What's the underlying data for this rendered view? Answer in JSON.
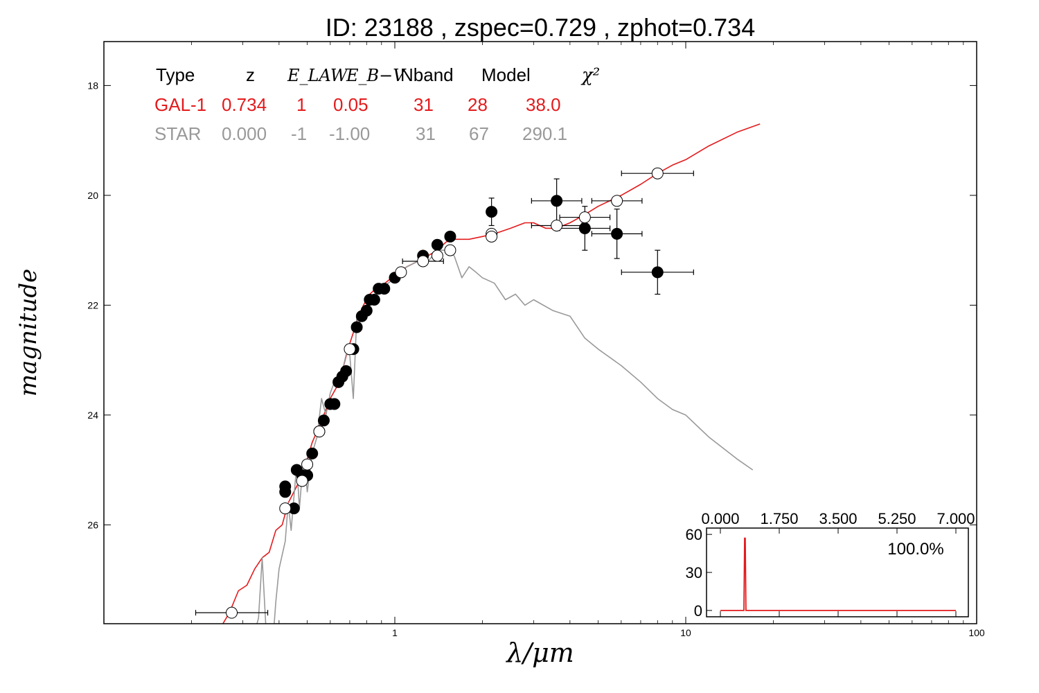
{
  "chart_data": [
    {
      "type": "scatter",
      "title": "ID:  23188 , zspec=0.729 , zphot=0.734",
      "xlabel": "λ/μm",
      "ylabel": "magnitude",
      "xscale": "log",
      "xlim": [
        0.1,
        100
      ],
      "ylim": [
        27.8,
        17.2
      ],
      "xticks": [
        "1",
        "10",
        "100"
      ],
      "yticks": [
        "18",
        "20",
        "22",
        "24",
        "26"
      ],
      "grid": false,
      "fit_table": {
        "headers": [
          "Type",
          "z",
          "E_LAW",
          "E_B−V",
          "Nband",
          "Model",
          "χ²"
        ],
        "rows": [
          {
            "type": "GAL-1",
            "z": "0.734",
            "elaw": "1",
            "ebv": "0.05",
            "nband": "31",
            "model": "28",
            "chi2": "38.0",
            "color": "#e31a1c"
          },
          {
            "type": "STAR",
            "z": "0.000",
            "elaw": "-1",
            "ebv": "-1.00",
            "nband": "31",
            "model": "67",
            "chi2": "290.1",
            "color": "#999999"
          }
        ]
      },
      "series": [
        {
          "name": "GAL-1",
          "kind": "line",
          "color": "#e31a1c",
          "points": [
            [
              0.25,
              27.9
            ],
            [
              0.27,
              27.6
            ],
            [
              0.29,
              27.2
            ],
            [
              0.31,
              27.1
            ],
            [
              0.33,
              26.8
            ],
            [
              0.35,
              26.6
            ],
            [
              0.37,
              26.5
            ],
            [
              0.39,
              26.1
            ],
            [
              0.41,
              26.0
            ],
            [
              0.43,
              25.6
            ],
            [
              0.45,
              25.4
            ],
            [
              0.47,
              25.2
            ],
            [
              0.5,
              24.8
            ],
            [
              0.52,
              24.5
            ],
            [
              0.55,
              24.2
            ],
            [
              0.58,
              23.9
            ],
            [
              0.6,
              23.7
            ],
            [
              0.63,
              23.5
            ],
            [
              0.66,
              23.2
            ],
            [
              0.69,
              22.8
            ],
            [
              0.72,
              22.5
            ],
            [
              0.75,
              22.2
            ],
            [
              0.78,
              22.0
            ],
            [
              0.82,
              21.8
            ],
            [
              0.86,
              21.7
            ],
            [
              0.9,
              21.65
            ],
            [
              0.95,
              21.55
            ],
            [
              1.0,
              21.45
            ],
            [
              1.1,
              21.3
            ],
            [
              1.2,
              21.2
            ],
            [
              1.25,
              21.0
            ],
            [
              1.3,
              21.1
            ],
            [
              1.4,
              21.0
            ],
            [
              1.5,
              20.85
            ],
            [
              1.6,
              20.8
            ],
            [
              1.8,
              20.8
            ],
            [
              2.0,
              20.75
            ],
            [
              2.2,
              20.7
            ],
            [
              2.5,
              20.6
            ],
            [
              2.8,
              20.5
            ],
            [
              3.0,
              20.5
            ],
            [
              3.3,
              20.6
            ],
            [
              3.6,
              20.6
            ],
            [
              4.0,
              20.5
            ],
            [
              4.5,
              20.35
            ],
            [
              5.0,
              20.2
            ],
            [
              6.0,
              20.0
            ],
            [
              7.0,
              19.8
            ],
            [
              8.0,
              19.6
            ],
            [
              9.0,
              19.45
            ],
            [
              10.0,
              19.35
            ],
            [
              12.0,
              19.1
            ],
            [
              15.0,
              18.85
            ],
            [
              18.0,
              18.7
            ]
          ]
        },
        {
          "name": "STAR",
          "kind": "line",
          "color": "#999999",
          "points": [
            [
              0.32,
              28.2
            ],
            [
              0.34,
              27.7
            ],
            [
              0.35,
              26.6
            ],
            [
              0.36,
              27.8
            ],
            [
              0.38,
              28.2
            ],
            [
              0.39,
              27.4
            ],
            [
              0.4,
              26.8
            ],
            [
              0.42,
              26.3
            ],
            [
              0.43,
              25.6
            ],
            [
              0.44,
              26.1
            ],
            [
              0.45,
              25.5
            ],
            [
              0.46,
              24.9
            ],
            [
              0.47,
              25.7
            ],
            [
              0.48,
              25.1
            ],
            [
              0.49,
              24.9
            ],
            [
              0.5,
              25.4
            ],
            [
              0.52,
              24.7
            ],
            [
              0.54,
              24.4
            ],
            [
              0.56,
              23.7
            ],
            [
              0.58,
              24.0
            ],
            [
              0.6,
              23.6
            ],
            [
              0.62,
              23.4
            ],
            [
              0.64,
              23.4
            ],
            [
              0.66,
              23.2
            ],
            [
              0.68,
              22.9
            ],
            [
              0.7,
              22.9
            ],
            [
              0.72,
              23.7
            ],
            [
              0.74,
              22.2
            ],
            [
              0.76,
              22.3
            ],
            [
              0.8,
              22.0
            ],
            [
              0.85,
              21.8
            ],
            [
              0.9,
              21.7
            ],
            [
              1.0,
              21.5
            ],
            [
              1.1,
              21.3
            ],
            [
              1.2,
              21.2
            ],
            [
              1.3,
              21.2
            ],
            [
              1.4,
              21.0
            ],
            [
              1.5,
              21.0
            ],
            [
              1.6,
              21.1
            ],
            [
              1.7,
              21.5
            ],
            [
              1.8,
              21.3
            ],
            [
              1.9,
              21.4
            ],
            [
              2.0,
              21.5
            ],
            [
              2.2,
              21.6
            ],
            [
              2.4,
              21.9
            ],
            [
              2.6,
              21.8
            ],
            [
              2.8,
              22.0
            ],
            [
              3.0,
              21.9
            ],
            [
              3.5,
              22.1
            ],
            [
              4.0,
              22.2
            ],
            [
              4.5,
              22.6
            ],
            [
              5.0,
              22.8
            ],
            [
              6.0,
              23.1
            ],
            [
              7.0,
              23.4
            ],
            [
              8.0,
              23.7
            ],
            [
              9.0,
              23.9
            ],
            [
              10.0,
              24.0
            ],
            [
              12.0,
              24.4
            ],
            [
              15.0,
              24.8
            ],
            [
              17.0,
              25.0
            ]
          ]
        },
        {
          "name": "observed",
          "kind": "points",
          "marker": "filled",
          "points": [
            [
              0.42,
              25.3
            ],
            [
              0.42,
              25.4
            ],
            [
              0.45,
              25.7
            ],
            [
              0.46,
              25.0
            ],
            [
              0.48,
              25.1
            ],
            [
              0.5,
              25.1
            ],
            [
              0.52,
              24.7
            ],
            [
              0.55,
              24.3
            ],
            [
              0.57,
              24.1
            ],
            [
              0.6,
              23.8
            ],
            [
              0.62,
              23.8
            ],
            [
              0.64,
              23.4
            ],
            [
              0.66,
              23.3
            ],
            [
              0.68,
              23.2
            ],
            [
              0.72,
              22.8
            ],
            [
              0.74,
              22.4
            ],
            [
              0.77,
              22.2
            ],
            [
              0.8,
              22.1
            ],
            [
              0.82,
              21.9
            ],
            [
              0.85,
              21.9
            ],
            [
              0.88,
              21.7
            ],
            [
              0.92,
              21.7
            ],
            [
              1.0,
              21.5
            ],
            [
              1.25,
              21.1
            ],
            [
              1.4,
              20.9
            ],
            [
              1.55,
              20.75
            ],
            [
              2.15,
              20.3
            ],
            [
              3.6,
              20.1
            ],
            [
              4.5,
              20.6
            ],
            [
              5.8,
              20.7
            ],
            [
              8.0,
              21.4
            ]
          ],
          "yerr": [
            0,
            0,
            0,
            0,
            0,
            0,
            0,
            0,
            0,
            0,
            0,
            0,
            0,
            0,
            0,
            0,
            0,
            0,
            0,
            0,
            0,
            0,
            0,
            0,
            0,
            0,
            0.25,
            0.4,
            0.4,
            0.45,
            0.4
          ],
          "xerr_frac": [
            0,
            0,
            0,
            0,
            0,
            0,
            0,
            0,
            0,
            0,
            0,
            0,
            0,
            0,
            0,
            0,
            0,
            0,
            0,
            0,
            0,
            0,
            0,
            0,
            0,
            0,
            0,
            0.1,
            0.1,
            0.1,
            0.15
          ]
        },
        {
          "name": "model",
          "kind": "points",
          "marker": "open",
          "points": [
            [
              0.275,
              27.6
            ],
            [
              0.42,
              25.7
            ],
            [
              0.48,
              25.2
            ],
            [
              0.5,
              24.9
            ],
            [
              0.55,
              24.3
            ],
            [
              0.7,
              22.8
            ],
            [
              1.05,
              21.4
            ],
            [
              1.25,
              21.2
            ],
            [
              1.4,
              21.1
            ],
            [
              1.55,
              21.0
            ],
            [
              2.15,
              20.7
            ],
            [
              2.15,
              20.75
            ],
            [
              3.6,
              20.55
            ],
            [
              4.5,
              20.4
            ],
            [
              5.8,
              20.1
            ],
            [
              8.0,
              19.6
            ]
          ],
          "xerr_frac": [
            0.15,
            0,
            0,
            0,
            0,
            0,
            0,
            0.08,
            0,
            0,
            0,
            0,
            0.1,
            0.1,
            0.1,
            0.15
          ]
        }
      ]
    },
    {
      "type": "line",
      "title": "",
      "percent_label": "100.0%",
      "xticks": [
        "0.000",
        "1.750",
        "3.500",
        "5.250",
        "7.000"
      ],
      "yticks": [
        "0",
        "30",
        "60"
      ],
      "xlim": [
        0,
        7
      ],
      "ylim": [
        -5,
        65
      ],
      "series": [
        {
          "name": "",
          "color": "#e31a1c",
          "points": [
            [
              0.0,
              0
            ],
            [
              0.7,
              0
            ],
            [
              0.72,
              57
            ],
            [
              0.74,
              57
            ],
            [
              0.76,
              0
            ],
            [
              7.0,
              0
            ]
          ]
        }
      ]
    }
  ]
}
